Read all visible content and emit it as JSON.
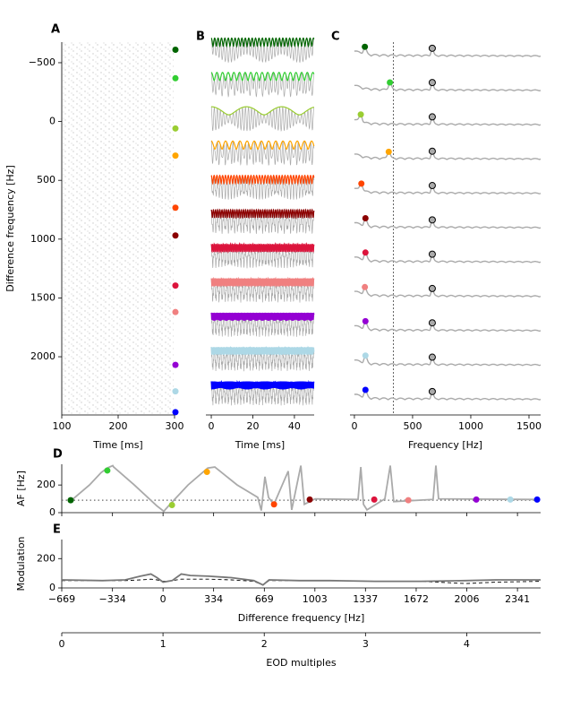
{
  "chart_data": [
    {
      "type": "raster",
      "label": "A",
      "xlabel": "Time [ms]",
      "ylabel": "Difference frequency [Hz]",
      "xlim": [
        100,
        300
      ],
      "xticks": [
        100,
        200,
        300
      ],
      "ylim": [
        -675,
        2495
      ],
      "inverted": true,
      "yticks": [
        {
          "value": -500,
          "label": "−500"
        },
        0,
        500,
        1000,
        1500,
        2000
      ],
      "values": [
        -610,
        -368,
        59,
        290,
        733,
        969,
        1395,
        1620,
        2069,
        2294,
        2471
      ],
      "colors": [
        "#006400",
        "#32cd32",
        "#9acd32",
        "#ffa500",
        "#ff4500",
        "#8b0000",
        "#dc143c",
        "#f08080",
        "#9400d3",
        "#add8e6",
        "#0000ff"
      ]
    },
    {
      "type": "waveform",
      "label": "B",
      "xlabel": "Time [ms]",
      "xlim": [
        -2.6,
        49.5
      ],
      "xticks": [
        0,
        20,
        40
      ]
    },
    {
      "type": "spectrum",
      "label": "C",
      "xlabel": "Frequency [Hz]",
      "xlim": [
        -38,
        1600
      ],
      "xticks": [
        0,
        500,
        1000,
        1500
      ],
      "values": [
        90,
        305,
        55,
        295,
        60,
        95,
        95,
        90,
        95,
        95,
        95
      ],
      "eod_frequency": 669,
      "reference_line": 334
    },
    {
      "type": "line",
      "label": "D",
      "ylabel": "AF [Hz]",
      "ylim": [
        0,
        350
      ],
      "yticks": [
        0,
        200
      ],
      "reference_line": 90,
      "x": [
        -610,
        -486,
        -409,
        -368,
        -332,
        -326,
        -190,
        -42,
        5,
        46,
        165,
        295,
        342,
        490,
        626,
        649,
        673,
        697,
        732,
        827,
        850,
        910,
        933,
        1004,
        1288,
        1306,
        1324,
        1347,
        1465,
        1501,
        1524,
        1784,
        1802,
        1820,
        2470
      ],
      "values": [
        85,
        200,
        290,
        323,
        340,
        330,
        200,
        50,
        10,
        60,
        200,
        323,
        330,
        200,
        110,
        15,
        260,
        110,
        60,
        300,
        20,
        340,
        60,
        100,
        95,
        330,
        60,
        20,
        100,
        340,
        80,
        95,
        340,
        100,
        95
      ]
    },
    {
      "type": "line",
      "label": "E",
      "ylabel": "Modulation",
      "ylim": [
        0,
        330
      ],
      "yticks": [
        0,
        200
      ],
      "x": [
        -669,
        -400,
        -250,
        -150,
        -80,
        -40,
        0,
        60,
        120,
        180,
        300,
        450,
        600,
        660,
        700,
        900,
        1100,
        1400,
        1700,
        2000,
        2200,
        2494
      ],
      "values": [
        55,
        50,
        55,
        80,
        95,
        70,
        40,
        50,
        95,
        85,
        80,
        70,
        50,
        20,
        55,
        50,
        50,
        45,
        45,
        50,
        55,
        55
      ],
      "reference_values": [
        50,
        50,
        50,
        55,
        60,
        55,
        45,
        50,
        60,
        60,
        60,
        55,
        45,
        20,
        50,
        50,
        50,
        45,
        45,
        30,
        40,
        45
      ]
    },
    {
      "type": "axis",
      "xlabel": "Difference frequency [Hz]",
      "xlim": [
        -669,
        2494
      ],
      "xticks": [
        {
          "value": -669,
          "label": "−669"
        },
        {
          "value": -334,
          "label": "−334"
        },
        0,
        334,
        669,
        1003,
        1337,
        1672,
        2006,
        2341
      ]
    },
    {
      "type": "axis",
      "xlabel": "EOD multiples",
      "xlim": [
        0,
        4.73
      ],
      "xticks": [
        0,
        1,
        2,
        3,
        4
      ]
    }
  ]
}
